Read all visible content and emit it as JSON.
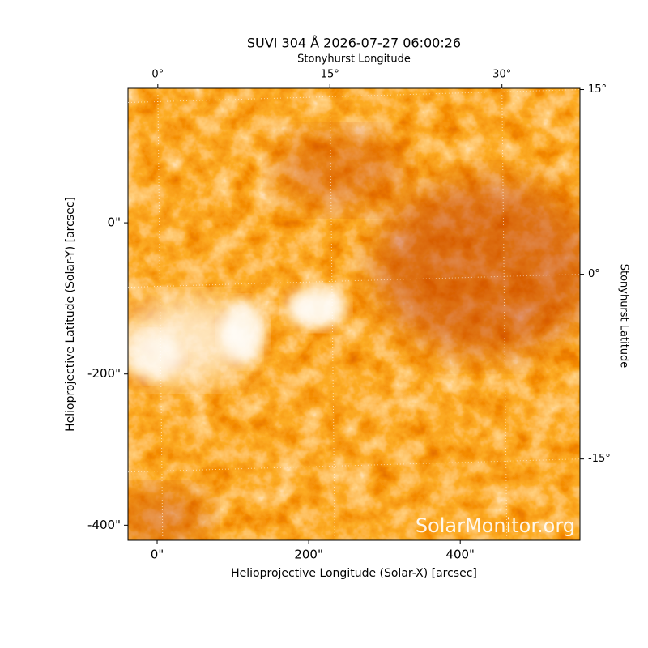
{
  "chart_data": {
    "type": "image",
    "title": "SUVI 304 Å 2026-07-27 06:00:26",
    "x_label": "Helioprojective Longitude (Solar-X) [arcsec]",
    "y_label": "Helioprojective Latitude (Solar-Y) [arcsec]",
    "x2_label": "Stonyhurst Longitude",
    "y2_label": "Stonyhurst Latitude",
    "watermark": "SolarMonitor.org",
    "xlim": [
      -38.5,
      558
    ],
    "ylim": [
      -420,
      178
    ],
    "xticks": [
      {
        "value": 0,
        "label": "0\""
      },
      {
        "value": 200,
        "label": "200\""
      },
      {
        "value": 400,
        "label": "400\""
      }
    ],
    "yticks": [
      {
        "value": 0,
        "label": "0\""
      },
      {
        "value": -200,
        "label": "-200\""
      },
      {
        "value": -400,
        "label": "-400\""
      }
    ],
    "x2lim": [
      -2.6,
      36.8
    ],
    "x2ticks": [
      {
        "value": 0,
        "label": "0°"
      },
      {
        "value": 15,
        "label": "15°"
      },
      {
        "value": 30,
        "label": "30°"
      }
    ],
    "y2lim": [
      -21.6,
      15.1
    ],
    "y2ticks": [
      {
        "value": 15,
        "label": "15°"
      },
      {
        "value": 0,
        "label": "0°"
      },
      {
        "value": -15,
        "label": "-15°"
      }
    ],
    "grid": true
  }
}
